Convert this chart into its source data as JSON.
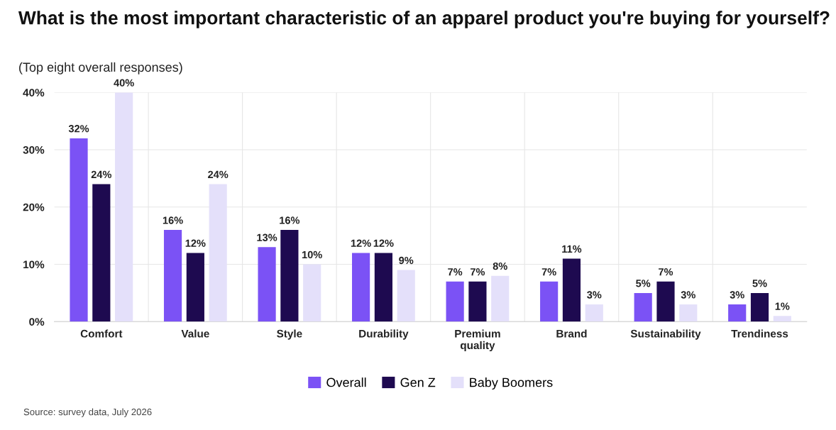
{
  "chart_data": {
    "type": "bar",
    "title": "What is the most important characteristic of an apparel product you're buying for yourself?",
    "subtitle": "(Top eight overall responses)",
    "categories": [
      "Comfort",
      "Value",
      "Style",
      "Durability",
      "Premium\nquality",
      "Brand",
      "Sustainability",
      "Trendiness"
    ],
    "series": [
      {
        "name": "Overall",
        "color": "#7b52f5",
        "values": [
          32,
          16,
          13,
          12,
          7,
          7,
          5,
          3
        ],
        "value_labels": [
          "32%",
          "16%",
          "13%",
          "12%",
          "7%",
          "7%",
          "5%",
          "3%"
        ]
      },
      {
        "name": "Gen Z",
        "color": "#1e0a50",
        "values": [
          24,
          12,
          16,
          12,
          7,
          11,
          7,
          5
        ],
        "value_labels": [
          "24%",
          "12%",
          "16%",
          "12%",
          "7%",
          "11%",
          "7%",
          "5%"
        ]
      },
      {
        "name": "Baby Boomers",
        "color": "#e4e0fa",
        "values": [
          40,
          24,
          10,
          9,
          8,
          3,
          3,
          1
        ],
        "value_labels": [
          "40%",
          "24%",
          "10%",
          "9%",
          "8%",
          "3%",
          "3%",
          "1%"
        ]
      }
    ],
    "ylim": [
      0,
      40
    ],
    "yticks": [
      {
        "value": 0,
        "label": "0%"
      },
      {
        "value": 10,
        "label": "10%"
      },
      {
        "value": 20,
        "label": "20%"
      },
      {
        "value": 30,
        "label": "30%"
      },
      {
        "value": 40,
        "label": "40%"
      }
    ],
    "grid": true,
    "legend": "bottom",
    "annotations": [
      "Source: survey data, July 2026"
    ]
  }
}
